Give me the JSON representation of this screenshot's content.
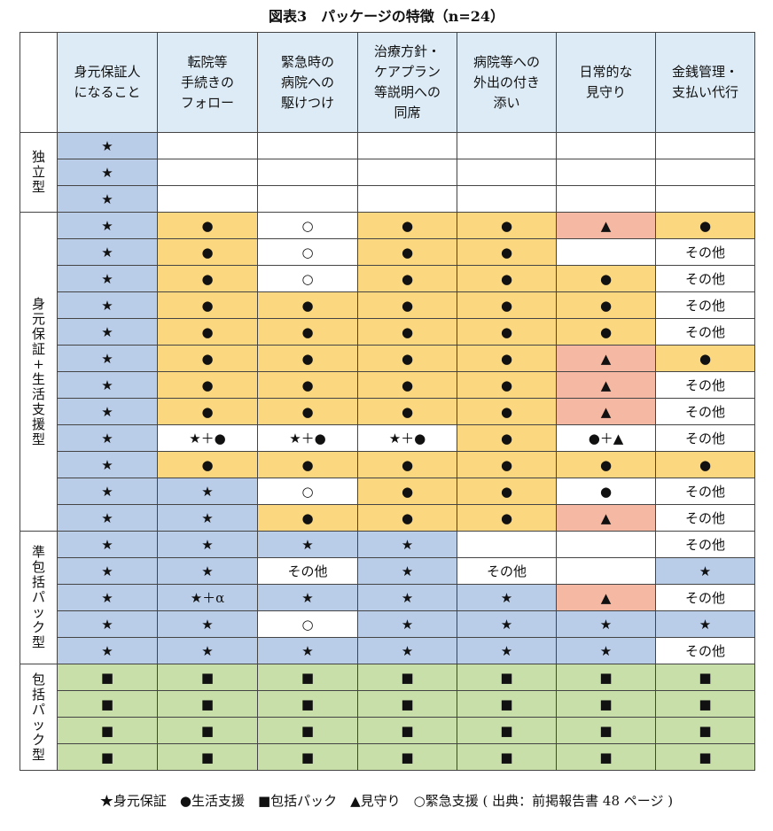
{
  "title": "図表3　パッケージの特徴（n=24）",
  "header": [
    "身元保証人\nになること",
    "転院等\n手続きの\nフォロー",
    "緊急時の\n病院への\n駆けつけ",
    "治療方針・\nケアプラン\n等説明への\n同席",
    "病院等への\n外出の付き\n添い",
    "日常的な\n見守り",
    "金銭管理・\n支払い代行"
  ],
  "groups": [
    {
      "label": "独\n立\n型",
      "rows": [
        [
          [
            "★",
            "blue"
          ],
          [
            "",
            "white"
          ],
          [
            "",
            "white"
          ],
          [
            "",
            "white"
          ],
          [
            "",
            "white"
          ],
          [
            "",
            "white"
          ],
          [
            "",
            "white"
          ]
        ],
        [
          [
            "★",
            "blue"
          ],
          [
            "",
            "white"
          ],
          [
            "",
            "white"
          ],
          [
            "",
            "white"
          ],
          [
            "",
            "white"
          ],
          [
            "",
            "white"
          ],
          [
            "",
            "white"
          ]
        ],
        [
          [
            "★",
            "blue"
          ],
          [
            "",
            "white"
          ],
          [
            "",
            "white"
          ],
          [
            "",
            "white"
          ],
          [
            "",
            "white"
          ],
          [
            "",
            "white"
          ],
          [
            "",
            "white"
          ]
        ]
      ]
    },
    {
      "label": "身\n元\n保\n証\n+\n生\n活\n支\n援\n型",
      "rows": [
        [
          [
            "★",
            "blue"
          ],
          [
            "●",
            "yellow"
          ],
          [
            "○",
            "white"
          ],
          [
            "●",
            "yellow"
          ],
          [
            "●",
            "yellow"
          ],
          [
            "▲",
            "pink"
          ],
          [
            "●",
            "yellow"
          ]
        ],
        [
          [
            "★",
            "blue"
          ],
          [
            "●",
            "yellow"
          ],
          [
            "○",
            "white"
          ],
          [
            "●",
            "yellow"
          ],
          [
            "●",
            "yellow"
          ],
          [
            "",
            "white"
          ],
          [
            "その他",
            "white"
          ]
        ],
        [
          [
            "★",
            "blue"
          ],
          [
            "●",
            "yellow"
          ],
          [
            "○",
            "white"
          ],
          [
            "●",
            "yellow"
          ],
          [
            "●",
            "yellow"
          ],
          [
            "●",
            "yellow"
          ],
          [
            "その他",
            "white"
          ]
        ],
        [
          [
            "★",
            "blue"
          ],
          [
            "●",
            "yellow"
          ],
          [
            "●",
            "yellow"
          ],
          [
            "●",
            "yellow"
          ],
          [
            "●",
            "yellow"
          ],
          [
            "●",
            "yellow"
          ],
          [
            "その他",
            "white"
          ]
        ],
        [
          [
            "★",
            "blue"
          ],
          [
            "●",
            "yellow"
          ],
          [
            "●",
            "yellow"
          ],
          [
            "●",
            "yellow"
          ],
          [
            "●",
            "yellow"
          ],
          [
            "●",
            "yellow"
          ],
          [
            "その他",
            "white"
          ]
        ],
        [
          [
            "★",
            "blue"
          ],
          [
            "●",
            "yellow"
          ],
          [
            "●",
            "yellow"
          ],
          [
            "●",
            "yellow"
          ],
          [
            "●",
            "yellow"
          ],
          [
            "▲",
            "pink"
          ],
          [
            "●",
            "yellow"
          ]
        ],
        [
          [
            "★",
            "blue"
          ],
          [
            "●",
            "yellow"
          ],
          [
            "●",
            "yellow"
          ],
          [
            "●",
            "yellow"
          ],
          [
            "●",
            "yellow"
          ],
          [
            "▲",
            "pink"
          ],
          [
            "その他",
            "white"
          ]
        ],
        [
          [
            "★",
            "blue"
          ],
          [
            "●",
            "yellow"
          ],
          [
            "●",
            "yellow"
          ],
          [
            "●",
            "yellow"
          ],
          [
            "●",
            "yellow"
          ],
          [
            "▲",
            "pink"
          ],
          [
            "その他",
            "white"
          ]
        ],
        [
          [
            "★",
            "blue"
          ],
          [
            "★＋●",
            "white"
          ],
          [
            "★＋●",
            "white"
          ],
          [
            "★＋●",
            "white"
          ],
          [
            "●",
            "yellow"
          ],
          [
            "●＋▲",
            "white"
          ],
          [
            "その他",
            "white"
          ]
        ],
        [
          [
            "★",
            "blue"
          ],
          [
            "●",
            "yellow"
          ],
          [
            "●",
            "yellow"
          ],
          [
            "●",
            "yellow"
          ],
          [
            "●",
            "yellow"
          ],
          [
            "●",
            "yellow"
          ],
          [
            "●",
            "yellow"
          ]
        ],
        [
          [
            "★",
            "blue"
          ],
          [
            "★",
            "blue"
          ],
          [
            "○",
            "white"
          ],
          [
            "●",
            "yellow"
          ],
          [
            "●",
            "yellow"
          ],
          [
            "●",
            "white"
          ],
          [
            "その他",
            "white"
          ]
        ],
        [
          [
            "★",
            "blue"
          ],
          [
            "★",
            "blue"
          ],
          [
            "●",
            "yellow"
          ],
          [
            "●",
            "yellow"
          ],
          [
            "●",
            "yellow"
          ],
          [
            "▲",
            "pink"
          ],
          [
            "その他",
            "white"
          ]
        ]
      ]
    },
    {
      "label": "準\n包\n括\nパ\nッ\nク\n型",
      "rows": [
        [
          [
            "★",
            "blue"
          ],
          [
            "★",
            "blue"
          ],
          [
            "★",
            "blue"
          ],
          [
            "★",
            "blue"
          ],
          [
            "",
            "white"
          ],
          [
            "",
            "white"
          ],
          [
            "その他",
            "white"
          ]
        ],
        [
          [
            "★",
            "blue"
          ],
          [
            "★",
            "blue"
          ],
          [
            "その他",
            "white"
          ],
          [
            "★",
            "blue"
          ],
          [
            "その他",
            "white"
          ],
          [
            "",
            "white"
          ],
          [
            "★",
            "blue"
          ]
        ],
        [
          [
            "★",
            "blue"
          ],
          [
            "★＋α",
            "blue"
          ],
          [
            "★",
            "blue"
          ],
          [
            "★",
            "blue"
          ],
          [
            "★",
            "blue"
          ],
          [
            "▲",
            "pink"
          ],
          [
            "その他",
            "white"
          ]
        ],
        [
          [
            "★",
            "blue"
          ],
          [
            "★",
            "blue"
          ],
          [
            "○",
            "white"
          ],
          [
            "★",
            "blue"
          ],
          [
            "★",
            "blue"
          ],
          [
            "★",
            "blue"
          ],
          [
            "★",
            "blue"
          ]
        ],
        [
          [
            "★",
            "blue"
          ],
          [
            "★",
            "blue"
          ],
          [
            "★",
            "blue"
          ],
          [
            "★",
            "blue"
          ],
          [
            "★",
            "blue"
          ],
          [
            "★",
            "blue"
          ],
          [
            "その他",
            "white"
          ]
        ]
      ]
    },
    {
      "label": "包\n括\nパ\nッ\nク\n型",
      "rows": [
        [
          [
            "■",
            "green"
          ],
          [
            "■",
            "green"
          ],
          [
            "■",
            "green"
          ],
          [
            "■",
            "green"
          ],
          [
            "■",
            "green"
          ],
          [
            "■",
            "green"
          ],
          [
            "■",
            "green"
          ]
        ],
        [
          [
            "■",
            "green"
          ],
          [
            "■",
            "green"
          ],
          [
            "■",
            "green"
          ],
          [
            "■",
            "green"
          ],
          [
            "■",
            "green"
          ],
          [
            "■",
            "green"
          ],
          [
            "■",
            "green"
          ]
        ],
        [
          [
            "■",
            "green"
          ],
          [
            "■",
            "green"
          ],
          [
            "■",
            "green"
          ],
          [
            "■",
            "green"
          ],
          [
            "■",
            "green"
          ],
          [
            "■",
            "green"
          ],
          [
            "■",
            "green"
          ]
        ],
        [
          [
            "■",
            "green"
          ],
          [
            "■",
            "green"
          ],
          [
            "■",
            "green"
          ],
          [
            "■",
            "green"
          ],
          [
            "■",
            "green"
          ],
          [
            "■",
            "green"
          ],
          [
            "■",
            "green"
          ]
        ]
      ]
    }
  ],
  "legend": "★身元保証　●生活支援　■包括パック　▲見守り　○緊急支援 ( 出典：前掲報告書 48 ページ )",
  "colors": {
    "blue": "#b9cde9",
    "yellow": "#fbd77f",
    "pink": "#f5b8a2",
    "green": "#c8dfaa",
    "white": "#ffffff",
    "header": "#dcebf6"
  }
}
